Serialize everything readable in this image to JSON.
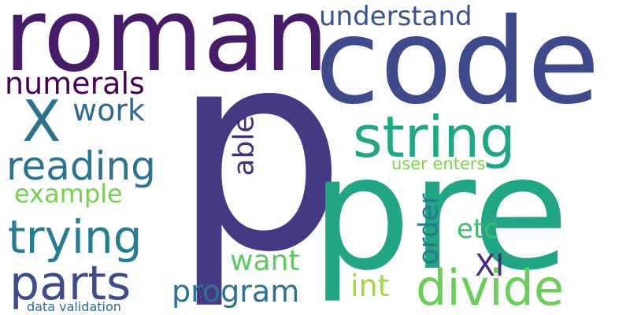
{
  "words": [
    {
      "text": "p",
      "color": "#443983"
    },
    {
      "text": "pre",
      "color": "#21a585"
    },
    {
      "text": "code",
      "color": "#3e4a89"
    },
    {
      "text": "roman",
      "color": "#471c68"
    },
    {
      "text": "string",
      "color": "#22a785"
    },
    {
      "text": "X",
      "color": "#2c728e"
    },
    {
      "text": "numerals",
      "color": "#440154"
    },
    {
      "text": "reading",
      "color": "#2c738e"
    },
    {
      "text": "trying",
      "color": "#287c8e"
    },
    {
      "text": "parts",
      "color": "#3e4c8a"
    },
    {
      "text": "divide",
      "color": "#6ccd5a"
    },
    {
      "text": "understand",
      "color": "#3b528b"
    },
    {
      "text": "work",
      "color": "#31688e"
    },
    {
      "text": "able",
      "color": "#472d7b"
    },
    {
      "text": "example",
      "color": "#75d054"
    },
    {
      "text": "user enters",
      "color": "#7fd34e"
    },
    {
      "text": "order",
      "color": "#2a788e"
    },
    {
      "text": "etc",
      "color": "#3dbc74"
    },
    {
      "text": "want",
      "color": "#5ec962"
    },
    {
      "text": "program",
      "color": "#2d718e"
    },
    {
      "text": "XI",
      "color": "#482979"
    },
    {
      "text": "int",
      "color": "#a2da37"
    },
    {
      "text": "data validation",
      "color": "#2f6c8e"
    }
  ]
}
